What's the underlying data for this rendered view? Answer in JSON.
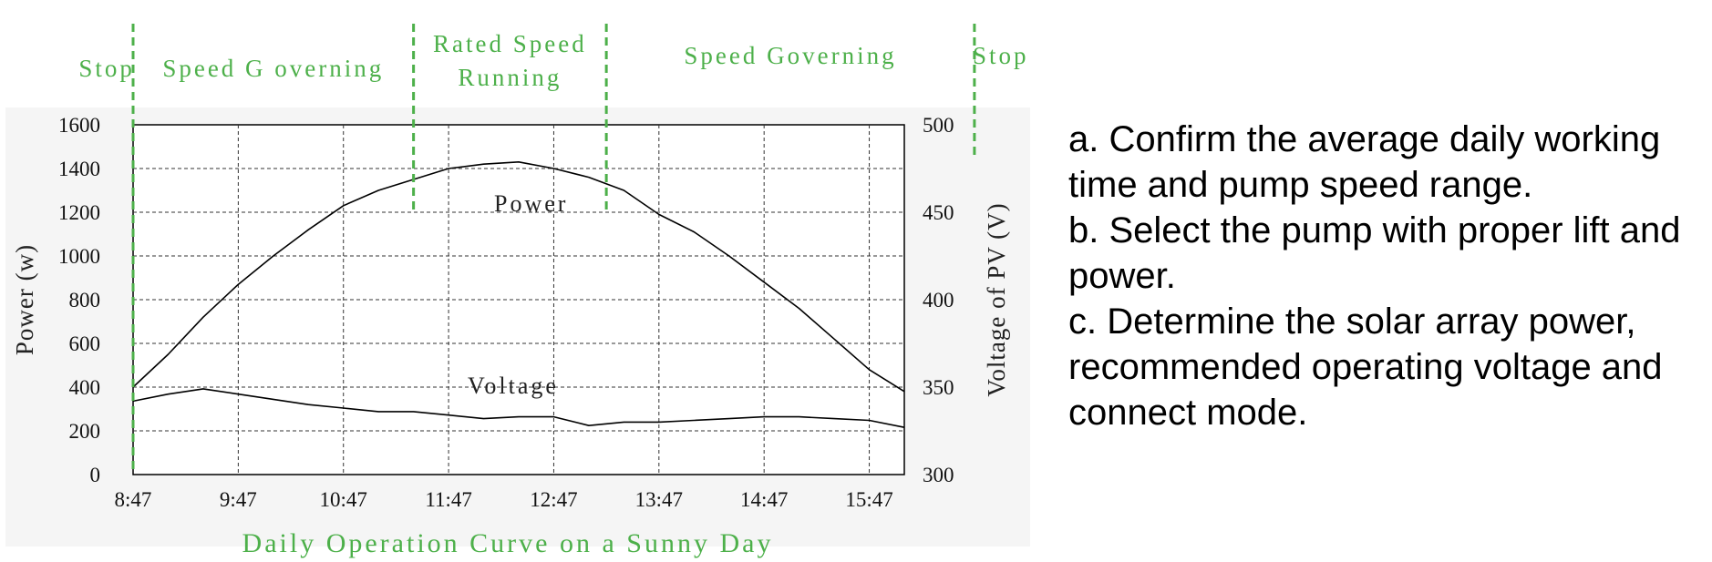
{
  "phases": [
    {
      "label": "Stop",
      "start": "8:17",
      "end": "8:47"
    },
    {
      "label": "Speed G overning",
      "start": "8:47",
      "end": "11:27"
    },
    {
      "label": "Rated Speed Running",
      "start": "11:27",
      "end": "13:17"
    },
    {
      "label": "Speed Governing",
      "start": "13:17",
      "end": "16:47"
    },
    {
      "label": "Stop",
      "start": "16:47",
      "end": "17:17"
    }
  ],
  "notes": [
    "a. Confirm the average daily working time and pump speed range.",
    "b. Select the pump with proper lift and power.",
    "c. Determine the solar array power, recommended operating voltage and connect mode."
  ],
  "colors": {
    "phase": "#4db04a",
    "series": "#000000",
    "grid": "#333333",
    "panel": "#f5f5f5"
  },
  "chart_data": {
    "type": "line",
    "title": "Daily Operation Curve on a Sunny Day",
    "xlabel": "",
    "ylabel": "Power (w)",
    "y2label": "Voltage of PV (V)",
    "x_ticks": [
      "8:47",
      "9:47",
      "10:47",
      "11:47",
      "12:47",
      "13:47",
      "14:47",
      "15:47"
    ],
    "xlim": [
      "8:47",
      "16:07"
    ],
    "ylim": [
      0,
      1600
    ],
    "y_ticks": [
      0,
      200,
      400,
      600,
      800,
      1000,
      1200,
      1400,
      1600
    ],
    "y2lim": [
      300,
      500
    ],
    "y2_ticks": [
      300,
      350,
      400,
      450,
      500
    ],
    "grid": true,
    "x": [
      "8:47",
      "9:07",
      "9:27",
      "9:47",
      "10:07",
      "10:27",
      "10:47",
      "11:07",
      "11:27",
      "11:47",
      "12:07",
      "12:27",
      "12:47",
      "13:07",
      "13:27",
      "13:47",
      "14:07",
      "14:27",
      "14:47",
      "15:07",
      "15:27",
      "15:47",
      "16:07"
    ],
    "series": [
      {
        "name": "Power",
        "axis": "left",
        "values": [
          400,
          550,
          720,
          870,
          1000,
          1120,
          1230,
          1300,
          1350,
          1400,
          1420,
          1430,
          1400,
          1360,
          1300,
          1190,
          1110,
          1000,
          880,
          760,
          620,
          480,
          380
        ]
      },
      {
        "name": "Voltage",
        "axis": "right",
        "values": [
          342,
          346,
          349,
          346,
          343,
          340,
          338,
          336,
          336,
          334,
          332,
          333,
          333,
          328,
          330,
          330,
          331,
          332,
          333,
          333,
          332,
          331,
          327
        ]
      }
    ]
  }
}
